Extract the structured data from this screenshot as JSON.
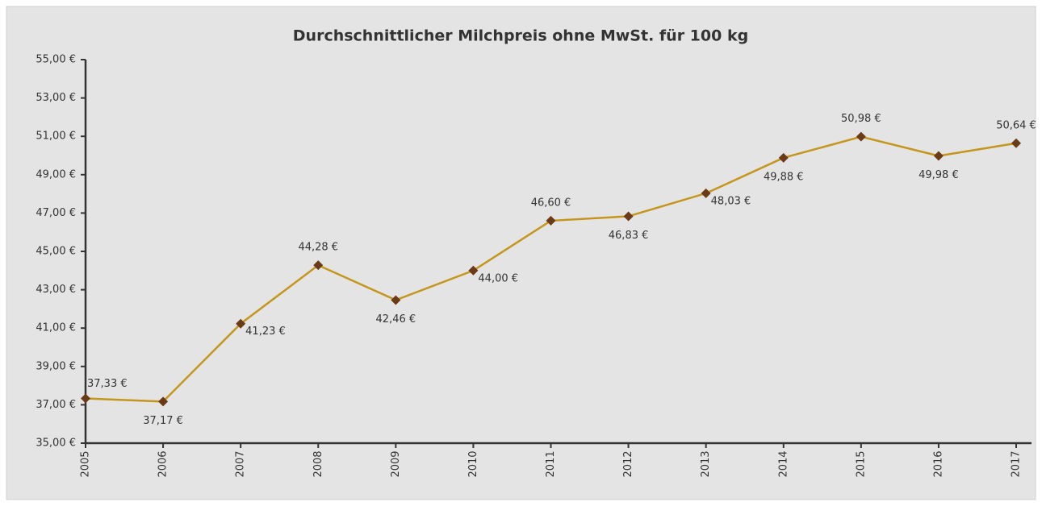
{
  "chart_data": {
    "type": "line",
    "title": "Durchschnittlicher Milchpreis ohne MwSt. für 100 kg",
    "categories": [
      "2005",
      "2006",
      "2007",
      "2008",
      "2009",
      "2010",
      "2011",
      "2012",
      "2013",
      "2014",
      "2015",
      "2016",
      "2017"
    ],
    "series": [
      {
        "name": "Milchpreis",
        "color": "#c4961c",
        "marker_color": "#6b3a17",
        "values": [
          37.33,
          37.17,
          41.23,
          44.28,
          42.46,
          44.0,
          46.6,
          46.83,
          48.03,
          49.88,
          50.98,
          49.98,
          50.64
        ],
        "value_labels": [
          "37,33 €",
          "37,17 €",
          "41,23 €",
          "44,28 €",
          "42,46 €",
          "44,00 €",
          "46,60 €",
          "46,83 €",
          "48,03 €",
          "49,88 €",
          "50,98 €",
          "49,98 €",
          "50,64 €"
        ]
      }
    ],
    "ylim": [
      35,
      55
    ],
    "yticks": [
      {
        "value": 35,
        "label": "35,00 €"
      },
      {
        "value": 37,
        "label": "37,00 €"
      },
      {
        "value": 39,
        "label": "39,00 €"
      },
      {
        "value": 41,
        "label": "41,00 €"
      },
      {
        "value": 43,
        "label": "43,00 €"
      },
      {
        "value": 45,
        "label": "45,00 €"
      },
      {
        "value": 47,
        "label": "47,00 €"
      },
      {
        "value": 49,
        "label": "49,00 €"
      },
      {
        "value": 51,
        "label": "51,00 €"
      },
      {
        "value": 53,
        "label": "53,00 €"
      },
      {
        "value": 55,
        "label": "55,00 €"
      }
    ]
  }
}
